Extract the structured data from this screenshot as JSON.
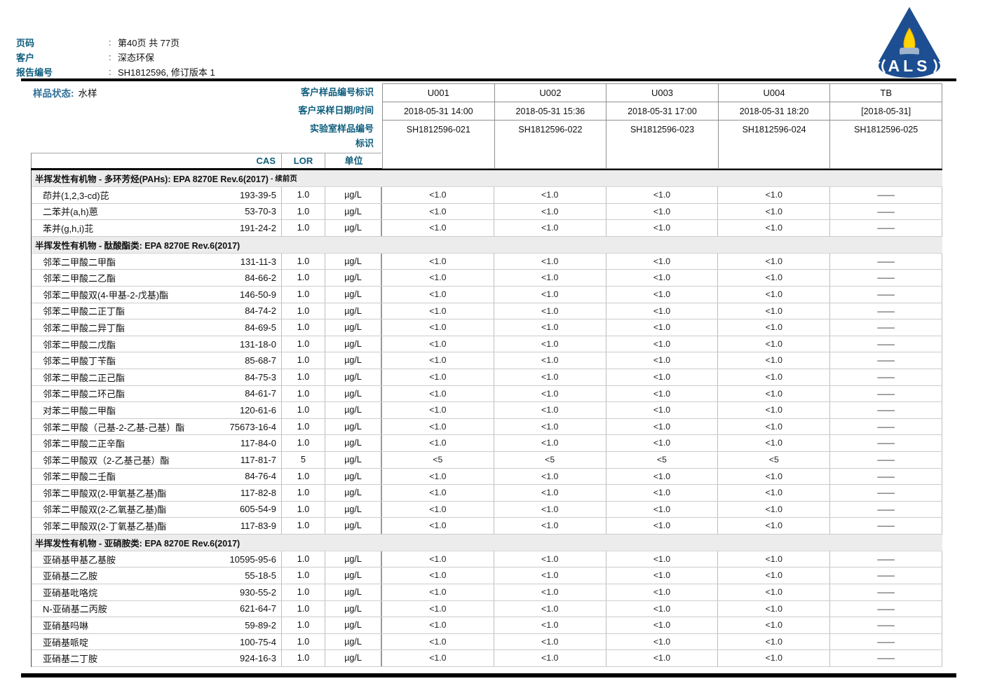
{
  "colors": {
    "label_blue": "#0d5d7d",
    "status_blue": "#2e6f96",
    "logo_navy": "#1d4e91",
    "logo_flame_yellow": "#ffd400",
    "logo_burner_blue": "#9fb3cc",
    "section_bg": "#ececec",
    "rule_black": "#000000"
  },
  "header": {
    "fields": [
      {
        "label": "页码",
        "value": "第40页 共 77页"
      },
      {
        "label": "客户",
        "value": "深态环保"
      },
      {
        "label": "报告编号",
        "value": "SH1812596, 修订版本 1"
      }
    ],
    "logo_text": "ALS"
  },
  "sample_info": {
    "status_label": "样品状态:",
    "status_value": "水样",
    "row_labels": [
      "客户样品编号标识",
      "客户采样日期/时间",
      "实验室样品编号",
      "标识"
    ],
    "samples": [
      {
        "id": "U001",
        "datetime": "2018-05-31 14:00",
        "lab_no": "SH1812596-021"
      },
      {
        "id": "U002",
        "datetime": "2018-05-31 15:36",
        "lab_no": "SH1812596-022"
      },
      {
        "id": "U003",
        "datetime": "2018-05-31 17:00",
        "lab_no": "SH1812596-023"
      },
      {
        "id": "U004",
        "datetime": "2018-05-31 18:20",
        "lab_no": "SH1812596-024"
      },
      {
        "id": "TB",
        "datetime": "[2018-05-31]",
        "lab_no": "SH1812596-025"
      }
    ]
  },
  "columns": {
    "cas": "CAS",
    "lor": "LOR",
    "unit": "单位"
  },
  "table": {
    "sections": [
      {
        "title": "半挥发性有机物 - 多环芳烃(PAHs): EPA 8270E Rev.6(2017)",
        "suffix": " - 续前页",
        "rows": [
          {
            "name": "茚并(1,2,3-cd)芘",
            "cas": "193-39-5",
            "lor": "1.0",
            "unit": "µg/L",
            "values": [
              "<1.0",
              "<1.0",
              "<1.0",
              "<1.0",
              "——"
            ]
          },
          {
            "name": "二苯并(a,h)蒽",
            "cas": "53-70-3",
            "lor": "1.0",
            "unit": "µg/L",
            "values": [
              "<1.0",
              "<1.0",
              "<1.0",
              "<1.0",
              "——"
            ]
          },
          {
            "name": "苯并(g,h,i)苝",
            "cas": "191-24-2",
            "lor": "1.0",
            "unit": "µg/L",
            "values": [
              "<1.0",
              "<1.0",
              "<1.0",
              "<1.0",
              "——"
            ]
          }
        ]
      },
      {
        "title": "半挥发性有机物 - 酞酸酯类: EPA 8270E Rev.6(2017)",
        "suffix": "",
        "rows": [
          {
            "name": "邻苯二甲酸二甲酯",
            "cas": "131-11-3",
            "lor": "1.0",
            "unit": "µg/L",
            "values": [
              "<1.0",
              "<1.0",
              "<1.0",
              "<1.0",
              "——"
            ]
          },
          {
            "name": "邻苯二甲酸二乙酯",
            "cas": "84-66-2",
            "lor": "1.0",
            "unit": "µg/L",
            "values": [
              "<1.0",
              "<1.0",
              "<1.0",
              "<1.0",
              "——"
            ]
          },
          {
            "name": "邻苯二甲酸双(4-甲基-2-戊基)酯",
            "cas": "146-50-9",
            "lor": "1.0",
            "unit": "µg/L",
            "values": [
              "<1.0",
              "<1.0",
              "<1.0",
              "<1.0",
              "——"
            ]
          },
          {
            "name": "邻苯二甲酸二正丁酯",
            "cas": "84-74-2",
            "lor": "1.0",
            "unit": "µg/L",
            "values": [
              "<1.0",
              "<1.0",
              "<1.0",
              "<1.0",
              "——"
            ]
          },
          {
            "name": "邻苯二甲酸二异丁酯",
            "cas": "84-69-5",
            "lor": "1.0",
            "unit": "µg/L",
            "values": [
              "<1.0",
              "<1.0",
              "<1.0",
              "<1.0",
              "——"
            ]
          },
          {
            "name": "邻苯二甲酸二戊酯",
            "cas": "131-18-0",
            "lor": "1.0",
            "unit": "µg/L",
            "values": [
              "<1.0",
              "<1.0",
              "<1.0",
              "<1.0",
              "——"
            ]
          },
          {
            "name": "邻苯二甲酸丁苄酯",
            "cas": "85-68-7",
            "lor": "1.0",
            "unit": "µg/L",
            "values": [
              "<1.0",
              "<1.0",
              "<1.0",
              "<1.0",
              "——"
            ]
          },
          {
            "name": "邻苯二甲酸二正己酯",
            "cas": "84-75-3",
            "lor": "1.0",
            "unit": "µg/L",
            "values": [
              "<1.0",
              "<1.0",
              "<1.0",
              "<1.0",
              "——"
            ]
          },
          {
            "name": "邻苯二甲酸二环己酯",
            "cas": "84-61-7",
            "lor": "1.0",
            "unit": "µg/L",
            "values": [
              "<1.0",
              "<1.0",
              "<1.0",
              "<1.0",
              "——"
            ]
          },
          {
            "name": "对苯二甲酸二甲酯",
            "cas": "120-61-6",
            "lor": "1.0",
            "unit": "µg/L",
            "values": [
              "<1.0",
              "<1.0",
              "<1.0",
              "<1.0",
              "——"
            ]
          },
          {
            "name": "邻苯二甲酸（己基-2-乙基-己基）酯",
            "cas": "75673-16-4",
            "lor": "1.0",
            "unit": "µg/L",
            "values": [
              "<1.0",
              "<1.0",
              "<1.0",
              "<1.0",
              "——"
            ]
          },
          {
            "name": "邻苯二甲酸二正辛酯",
            "cas": "117-84-0",
            "lor": "1.0",
            "unit": "µg/L",
            "values": [
              "<1.0",
              "<1.0",
              "<1.0",
              "<1.0",
              "——"
            ]
          },
          {
            "name": "邻苯二甲酸双（2-乙基己基）酯",
            "cas": "117-81-7",
            "lor": "5",
            "unit": "µg/L",
            "values": [
              "<5",
              "<5",
              "<5",
              "<5",
              "——"
            ]
          },
          {
            "name": "邻苯二甲酸二壬酯",
            "cas": "84-76-4",
            "lor": "1.0",
            "unit": "µg/L",
            "values": [
              "<1.0",
              "<1.0",
              "<1.0",
              "<1.0",
              "——"
            ]
          },
          {
            "name": "邻苯二甲酸双(2-甲氧基乙基)酯",
            "cas": "117-82-8",
            "lor": "1.0",
            "unit": "µg/L",
            "values": [
              "<1.0",
              "<1.0",
              "<1.0",
              "<1.0",
              "——"
            ]
          },
          {
            "name": "邻苯二甲酸双(2-乙氧基乙基)酯",
            "cas": "605-54-9",
            "lor": "1.0",
            "unit": "µg/L",
            "values": [
              "<1.0",
              "<1.0",
              "<1.0",
              "<1.0",
              "——"
            ]
          },
          {
            "name": "邻苯二甲酸双(2-丁氧基乙基)酯",
            "cas": "117-83-9",
            "lor": "1.0",
            "unit": "µg/L",
            "values": [
              "<1.0",
              "<1.0",
              "<1.0",
              "<1.0",
              "——"
            ]
          }
        ]
      },
      {
        "title": "半挥发性有机物 - 亚硝胺类: EPA 8270E Rev.6(2017)",
        "suffix": "",
        "rows": [
          {
            "name": "亚硝基甲基乙基胺",
            "cas": "10595-95-6",
            "lor": "1.0",
            "unit": "µg/L",
            "values": [
              "<1.0",
              "<1.0",
              "<1.0",
              "<1.0",
              "——"
            ]
          },
          {
            "name": "亚硝基二乙胺",
            "cas": "55-18-5",
            "lor": "1.0",
            "unit": "µg/L",
            "values": [
              "<1.0",
              "<1.0",
              "<1.0",
              "<1.0",
              "——"
            ]
          },
          {
            "name": "亚硝基吡咯烷",
            "cas": "930-55-2",
            "lor": "1.0",
            "unit": "µg/L",
            "values": [
              "<1.0",
              "<1.0",
              "<1.0",
              "<1.0",
              "——"
            ]
          },
          {
            "name": "N-亚硝基二丙胺",
            "cas": "621-64-7",
            "lor": "1.0",
            "unit": "µg/L",
            "values": [
              "<1.0",
              "<1.0",
              "<1.0",
              "<1.0",
              "——"
            ]
          },
          {
            "name": "亚硝基吗啉",
            "cas": "59-89-2",
            "lor": "1.0",
            "unit": "µg/L",
            "values": [
              "<1.0",
              "<1.0",
              "<1.0",
              "<1.0",
              "——"
            ]
          },
          {
            "name": "亚硝基哌啶",
            "cas": "100-75-4",
            "lor": "1.0",
            "unit": "µg/L",
            "values": [
              "<1.0",
              "<1.0",
              "<1.0",
              "<1.0",
              "——"
            ]
          },
          {
            "name": "亚硝基二丁胺",
            "cas": "924-16-3",
            "lor": "1.0",
            "unit": "µg/L",
            "values": [
              "<1.0",
              "<1.0",
              "<1.0",
              "<1.0",
              "——"
            ]
          }
        ]
      }
    ]
  }
}
